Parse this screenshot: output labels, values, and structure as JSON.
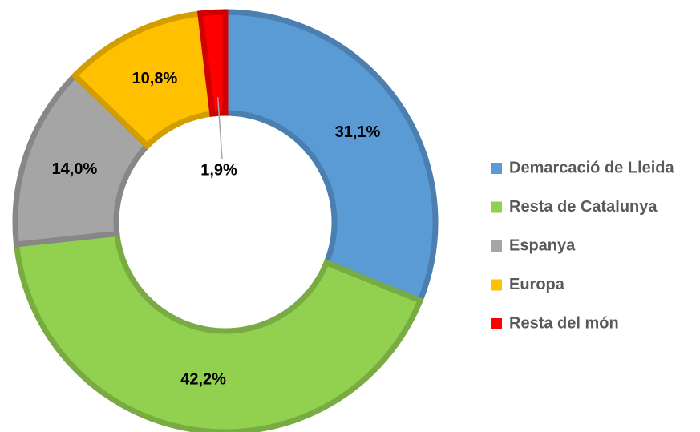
{
  "chart_data": {
    "type": "donut",
    "categories": [
      "Demarcació de Lleida",
      "Resta de Catalunya",
      "Espanya",
      "Europa",
      "Resta del món"
    ],
    "values": [
      31.1,
      42.2,
      14.0,
      10.8,
      1.9
    ],
    "value_labels": [
      "31,1%",
      "42,2%",
      "14,0%",
      "10,8%",
      "1,9%"
    ],
    "colors": [
      "#5b9bd5",
      "#92d050",
      "#a5a5a5",
      "#ffc000",
      "#ff0000"
    ],
    "legend": "right"
  }
}
